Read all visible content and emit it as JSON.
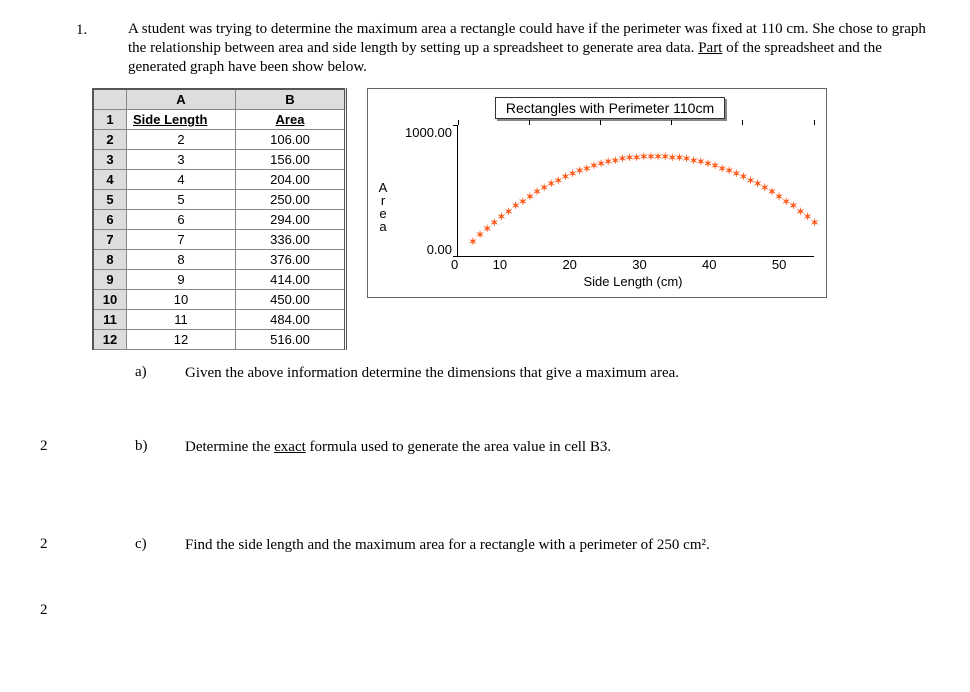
{
  "problem": {
    "number": "1.",
    "text_parts": [
      "A student was trying to determine the maximum area a rectangle could have if the perimeter was fixed at 110 cm.  She chose to graph the relationship between area and side length by setting up a spreadsheet to generate area data.  ",
      "Part",
      " of the spreadsheet and the generated graph have been show below."
    ]
  },
  "spreadsheet": {
    "col_headers": [
      "A",
      "B"
    ],
    "row1": {
      "num": "1",
      "A": "Side  Length",
      "B": "Area"
    },
    "rows": [
      {
        "num": "2",
        "A": "2",
        "B": "106.00"
      },
      {
        "num": "3",
        "A": "3",
        "B": "156.00"
      },
      {
        "num": "4",
        "A": "4",
        "B": "204.00"
      },
      {
        "num": "5",
        "A": "5",
        "B": "250.00"
      },
      {
        "num": "6",
        "A": "6",
        "B": "294.00"
      },
      {
        "num": "7",
        "A": "7",
        "B": "336.00"
      },
      {
        "num": "8",
        "A": "8",
        "B": "376.00"
      },
      {
        "num": "9",
        "A": "9",
        "B": "414.00"
      },
      {
        "num": "10",
        "A": "10",
        "B": "450.00"
      },
      {
        "num": "11",
        "A": "11",
        "B": "484.00"
      },
      {
        "num": "12",
        "A": "12",
        "B": "516.00"
      }
    ]
  },
  "chart": {
    "title": "Rectangles with Perimeter 110cm",
    "y_label": "Area",
    "x_label": "Side Length (cm)",
    "y_ticks": [
      "1000.00",
      "0.00"
    ],
    "x_ticks": [
      "0",
      "10",
      "20",
      "30",
      "40",
      "50"
    ],
    "x_range": [
      0,
      50
    ],
    "y_range": [
      0,
      1000
    ],
    "marker_color": "#ff5a1a",
    "marker_size": 7,
    "series_x_start": 2,
    "series_x_end": 50,
    "series_x_step": 1,
    "perimeter": 110
  },
  "parts": {
    "a": {
      "label": "a)",
      "text": "Given the above information determine the dimensions  that give a maximum area."
    },
    "b": {
      "label": "b)",
      "text_parts": [
        "Determine the ",
        "exact",
        " formula used to generate the area value in cell B3."
      ]
    },
    "c": {
      "label": "c)",
      "text": "Find the side length and the maximum area for a rectangle with a perimeter of 250 cm²."
    }
  },
  "margin_marks": {
    "mark": "2"
  }
}
